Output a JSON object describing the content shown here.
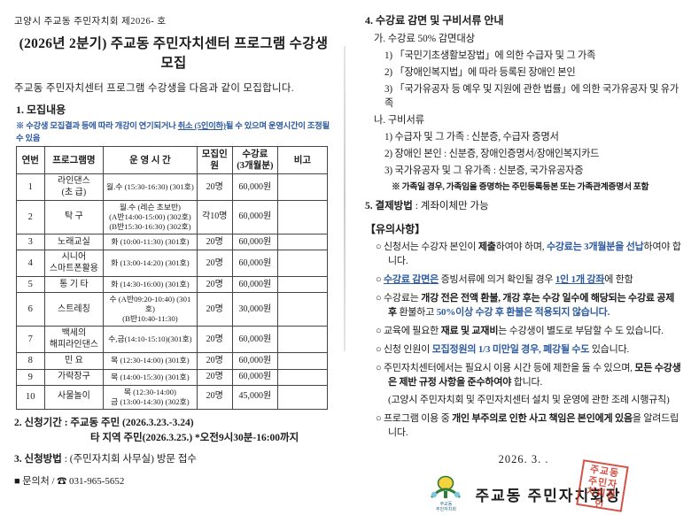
{
  "page1": {
    "doc_no": "고양시 주교동 주민자치회 제2026-    호",
    "title": "(2026년 2분기) 주교동 주민자치센터 프로그램 수강생 모집",
    "intro": "주교동 주민자치센터 프로그램 수강생을 다음과 같이 모집합니다.",
    "section1_heading": "1. 모집내용",
    "table_note_segments": [
      {
        "t": "※ 수강생 모집결과 등에 따라 개강이 연기되거나 ",
        "s": ""
      },
      {
        "t": "취소 (5인이하)",
        "s": "u"
      },
      {
        "t": "될 수 있으며 운영시간이 조정될 수 있음",
        "s": ""
      }
    ],
    "table": {
      "headers": [
        "연번",
        "프로그램명",
        "운 영 시 간",
        "모집인원",
        "수강료\n(3개월분)",
        "비고"
      ],
      "rows": [
        {
          "no": "1",
          "name": "라인댄스\n(초 급)",
          "time": "월.수 (15:30-16:30) (301호)",
          "capacity": "20명",
          "fee": "60,000원",
          "note": ""
        },
        {
          "no": "2",
          "name": "탁  구",
          "time": "월.수 (레슨 초보반)\n(A반14:00-15:00) (302호)\n(B반15:30-16:30) (302호)",
          "capacity": "각10명",
          "fee": "60,000원",
          "note": ""
        },
        {
          "no": "3",
          "name": "노래교실",
          "time": "화 (10:00-11:30) (301호)",
          "capacity": "20명",
          "fee": "60,000원",
          "note": ""
        },
        {
          "no": "4",
          "name": "시니어\n스마트폰활용",
          "time": "화 (13:00-14:20) (301호)",
          "capacity": "20명",
          "fee": "60,000원",
          "note": ""
        },
        {
          "no": "5",
          "name": "통 기 타",
          "time": "화 (14:30-16:00) (301호)",
          "capacity": "20명",
          "fee": "60,000원",
          "note": ""
        },
        {
          "no": "6",
          "name": "스트레칭",
          "time": "수 (A반09:20-10:40) (301호)\n(B반10:40-11:30)",
          "capacity": "20명",
          "fee": "30,000원",
          "note": ""
        },
        {
          "no": "7",
          "name": "백세의\n해피라인댄스",
          "time": "수,금(14:10-15:10)(301호)",
          "capacity": "20명",
          "fee": "60,000원",
          "note": ""
        },
        {
          "no": "8",
          "name": "민 요",
          "time": "목 (12:30-14:00) (301호)",
          "capacity": "20명",
          "fee": "60,000원",
          "note": ""
        },
        {
          "no": "9",
          "name": "가락장구",
          "time": "목 (14:00-15:30) (301호)",
          "capacity": "20명",
          "fee": "60,000원",
          "note": ""
        },
        {
          "no": "10",
          "name": "사물놀이",
          "time": "목 (12:30-14:00)\n금 (13:00-14:30) (302호)",
          "capacity": "20명",
          "fee": "45,000원",
          "note": ""
        }
      ]
    },
    "section2_line1": "2. 신청기간 : 주교동 주민 (2026.3.23.-3.24)",
    "section2_line2": "타 지역 주민(2026.3.25.)    *오전9시30분-16:00까지",
    "section3_segments": [
      {
        "t": "3. ",
        "s": "b"
      },
      {
        "t": "신청방법",
        "s": "b"
      },
      {
        "t": " : (주민자치회 사무실) 방문 접수",
        "s": ""
      }
    ],
    "contact": "■ 문의처 / ☎ 031-965-5652"
  },
  "page2": {
    "section4_heading": "4. 수강료 감면 및 구비서류 안내",
    "ga_heading": "가. 수강료 50% 감면대상",
    "ga_items": [
      "1) 「국민기초생활보장법」에 의한 수급자 및 그 가족",
      "2) 「장애인복지법」에 따라 등록된 장애인 본인",
      "3) 「국가유공자 등 예우 및 지원에 관한 법률」에 의한 국가유공자 및 유가족"
    ],
    "na_heading": "나. 구비서류",
    "na_items": [
      "1) 수급자 및 그 가족 : 신분증, 수급자 증명서",
      "2) 장애인 본인 : 신분증, 장애인증명서/장애인복지카드",
      "3) 국가유공자 및 그 유가족 : 신분증, 국가유공자증"
    ],
    "family_note": "※ 가족일 경우, 가족임을 증명하는 주민등록등본 또는 가족관계증명서 포함",
    "section5_segments": [
      {
        "t": "5. ",
        "s": "b"
      },
      {
        "t": "결제방법",
        "s": "b"
      },
      {
        "t": " : 계좌이체만 가능",
        "s": ""
      }
    ],
    "notice_heading": "【유의사항】",
    "notices": [
      [
        {
          "t": "○ 신청서는 수강자 본인이 ",
          "s": ""
        },
        {
          "t": "제출",
          "s": "b"
        },
        {
          "t": "하여야 하며, ",
          "s": ""
        },
        {
          "t": "수강료는 3개월분을 선납",
          "s": "bl"
        },
        {
          "t": "하여야 합니다.",
          "s": ""
        }
      ],
      [
        {
          "t": "○ ",
          "s": ""
        },
        {
          "t": "수강료 감면은",
          "s": "blu"
        },
        {
          "t": " 증빙서류에 의거 확인될 경우 ",
          "s": ""
        },
        {
          "t": "1인 1개 강좌",
          "s": "blu"
        },
        {
          "t": "에 한함",
          "s": ""
        }
      ],
      [
        {
          "t": "○ 수강료는 ",
          "s": ""
        },
        {
          "t": "개강 전은 전액 환불, 개강 후는 수강 일수에 해당되는 수강료 공제 후",
          "s": "b"
        },
        {
          "t": " 환불하고 ",
          "s": ""
        },
        {
          "t": "50%이상 수강 후 환불은 적용되지 않습니다.",
          "s": "bl"
        }
      ],
      [
        {
          "t": "○ 교육에 필요한 ",
          "s": ""
        },
        {
          "t": "재료 및 교재비",
          "s": "b"
        },
        {
          "t": "는 수강생이 별도로 부담할 수 도 있습니다.",
          "s": ""
        }
      ],
      [
        {
          "t": "○ 신청 인원이 ",
          "s": ""
        },
        {
          "t": "모집정원의 1/3 미만일 경우, 폐강될 수도",
          "s": "bl"
        },
        {
          "t": " 있습니다.",
          "s": ""
        }
      ],
      [
        {
          "t": "○ 주민자치센터에서는 필요시 이용 시간 등에 제한을 둘 수 있으며, ",
          "s": ""
        },
        {
          "t": "모든 수강생은 제반 규정 사항을 준수하여야",
          "s": "b"
        },
        {
          "t": " 합니다.",
          "s": ""
        }
      ],
      [
        {
          "t": "(고양시 주민자치회 및 주민자치센터 설치 및 운영에 관한 조례 시행규칙)",
          "s": ""
        }
      ],
      [
        {
          "t": "○ 프로그램 이용 중 ",
          "s": ""
        },
        {
          "t": "개인 부주의로 인한 사고 책임은 본인에게 있음",
          "s": "b"
        },
        {
          "t": "을 알려드립니다.",
          "s": ""
        }
      ]
    ],
    "date": "2026. 3.  .",
    "signature": "주교동 주민자치회장",
    "logo_caption": "주교동\n주민자치회",
    "seal_text": "주교동 주민자치회장인",
    "colors": {
      "emphasis_blue": "#2e5b9f",
      "seal_red": "#d03a2c",
      "logo_green": "#2e7d32",
      "logo_yellow": "#f5d33f"
    }
  }
}
